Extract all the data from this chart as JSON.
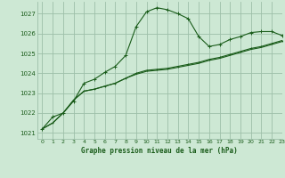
{
  "title": "Graphe pression niveau de la mer (hPa)",
  "bg_color": "#cde8d4",
  "grid_color": "#9dbfa8",
  "line_color": "#1a5c1a",
  "xlim": [
    -0.5,
    23
  ],
  "ylim": [
    1020.7,
    1027.6
  ],
  "yticks": [
    1021,
    1022,
    1023,
    1024,
    1025,
    1026,
    1027
  ],
  "xticks": [
    0,
    1,
    2,
    3,
    4,
    5,
    6,
    7,
    8,
    9,
    10,
    11,
    12,
    13,
    14,
    15,
    16,
    17,
    18,
    19,
    20,
    21,
    22,
    23
  ],
  "series1_x": [
    0,
    1,
    2,
    3,
    4,
    5,
    6,
    7,
    8,
    9,
    10,
    11,
    12,
    13,
    14,
    15,
    16,
    17,
    18,
    19,
    20,
    21,
    22,
    23
  ],
  "series1_y": [
    1021.2,
    1021.8,
    1022.0,
    1022.6,
    1023.5,
    1023.7,
    1024.05,
    1024.35,
    1024.9,
    1026.35,
    1027.1,
    1027.3,
    1027.2,
    1027.0,
    1026.75,
    1025.85,
    1025.35,
    1025.45,
    1025.7,
    1025.85,
    1026.05,
    1026.1,
    1026.1,
    1025.9
  ],
  "series2_x": [
    0,
    1,
    2,
    3,
    4,
    5,
    6,
    7,
    8,
    9,
    10,
    11,
    12,
    13,
    14,
    15,
    16,
    17,
    18,
    19,
    20,
    21,
    22,
    23
  ],
  "series2_y": [
    1021.2,
    1021.5,
    1022.0,
    1022.65,
    1023.1,
    1023.2,
    1023.35,
    1023.5,
    1023.75,
    1024.0,
    1024.15,
    1024.2,
    1024.25,
    1024.35,
    1024.45,
    1024.55,
    1024.7,
    1024.8,
    1024.95,
    1025.1,
    1025.25,
    1025.35,
    1025.5,
    1025.65
  ],
  "series3_x": [
    0,
    1,
    2,
    3,
    4,
    5,
    6,
    7,
    8,
    9,
    10,
    11,
    12,
    13,
    14,
    15,
    16,
    17,
    18,
    19,
    20,
    21,
    22,
    23
  ],
  "series3_y": [
    1021.2,
    1021.5,
    1022.0,
    1022.65,
    1023.1,
    1023.2,
    1023.35,
    1023.5,
    1023.75,
    1023.95,
    1024.1,
    1024.15,
    1024.2,
    1024.3,
    1024.4,
    1024.5,
    1024.65,
    1024.75,
    1024.9,
    1025.05,
    1025.2,
    1025.3,
    1025.45,
    1025.6
  ]
}
